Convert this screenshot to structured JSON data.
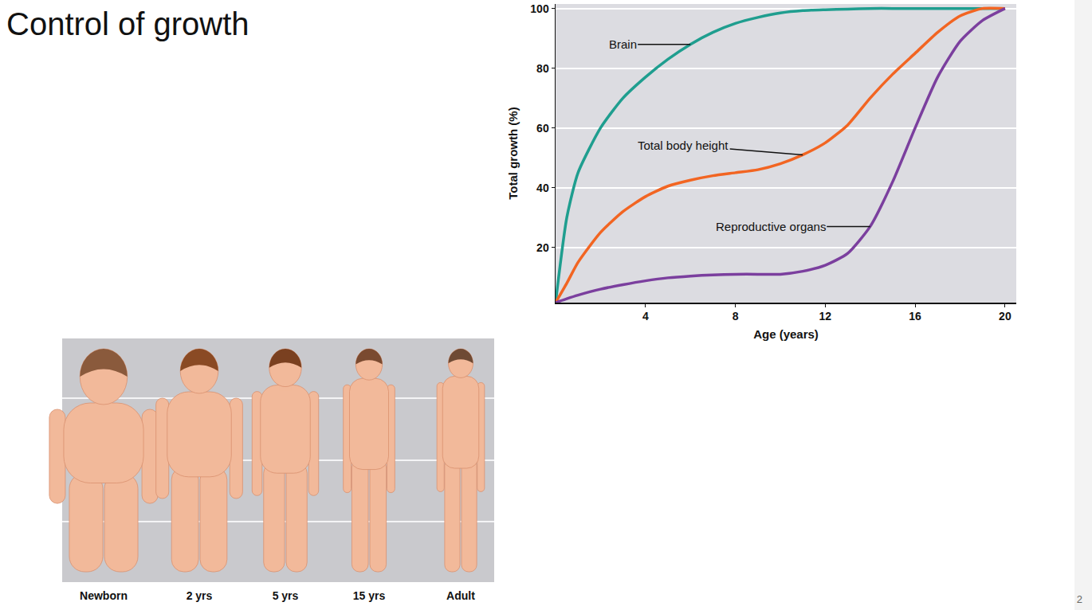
{
  "slide": {
    "title": "Control of growth",
    "page": "2",
    "figure_labels": [
      "Newborn",
      "2 yrs",
      "5 yrs",
      "15 yrs",
      "Adult"
    ]
  },
  "chart_data": {
    "type": "line",
    "xlabel": "Age (years)",
    "ylabel": "Total growth (%)",
    "x": [
      0,
      0.5,
      1,
      2,
      3,
      4,
      5,
      6,
      7,
      8,
      9,
      10,
      11,
      12,
      13,
      14,
      15,
      16,
      17,
      18,
      19,
      20
    ],
    "series": [
      {
        "name": "Brain",
        "color": "#1f9e8f",
        "values": [
          1.5,
          30,
          45,
          60,
          70,
          77,
          83,
          88,
          92,
          95,
          97,
          98.5,
          99.3,
          99.6,
          99.8,
          100,
          100,
          100,
          100,
          100,
          100,
          100
        ]
      },
      {
        "name": "Total body height",
        "color": "#f26522",
        "values": [
          1.5,
          8,
          15,
          25,
          32,
          37,
          40.5,
          42.5,
          44,
          45,
          46,
          48,
          51,
          55,
          61,
          70,
          78,
          85,
          92,
          97.5,
          100,
          100
        ]
      },
      {
        "name": "Reproductive organs",
        "color": "#7b3f9e",
        "values": [
          1.5,
          2.8,
          4,
          6,
          7.5,
          8.8,
          9.8,
          10.4,
          10.8,
          11,
          11,
          11,
          12,
          14,
          18,
          27,
          42,
          60,
          77,
          89,
          96,
          100
        ]
      }
    ],
    "xlim": [
      0,
      20.5
    ],
    "xticks": [
      4,
      8,
      12,
      16,
      20
    ],
    "ylim": [
      1.5,
      101.5
    ],
    "yticks": [
      20,
      40,
      60,
      80,
      100
    ],
    "grid": true
  }
}
